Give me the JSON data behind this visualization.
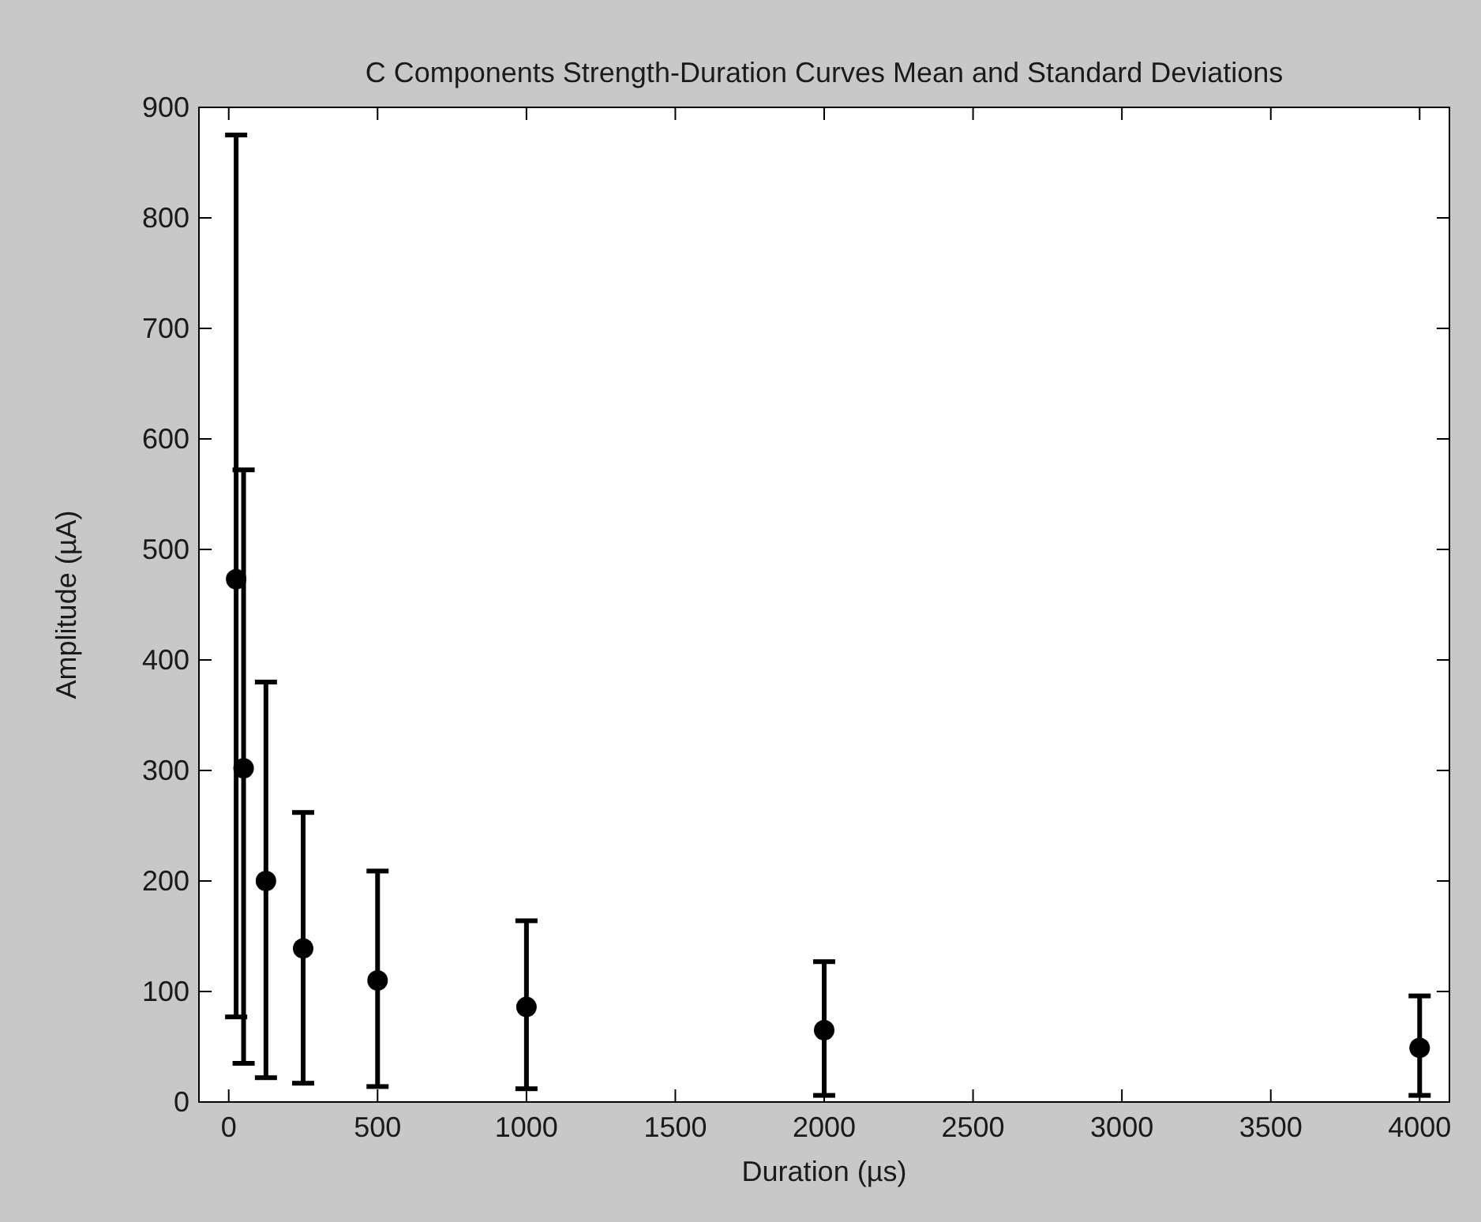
{
  "chart_data": {
    "type": "scatter",
    "title": "C Components Strength-Duration Curves Mean and Standard Deviations",
    "xlabel": "Duration (µs)",
    "ylabel": "Amplitude (µA)",
    "x": [
      25,
      50,
      125,
      250,
      500,
      1000,
      2000,
      4000
    ],
    "series": [
      {
        "color": "#000000",
        "values": [
          473,
          302,
          200,
          139,
          110,
          86,
          65,
          49
        ],
        "errors": [
          [
            77,
            875
          ],
          [
            35,
            572
          ],
          [
            22,
            380
          ],
          [
            17,
            262
          ],
          [
            14,
            209
          ],
          [
            12,
            164
          ],
          [
            6,
            127
          ],
          [
            6,
            96
          ]
        ]
      }
    ],
    "marker": "circle",
    "xlim": [
      -100,
      4100
    ],
    "ylim": [
      0,
      900
    ],
    "xticks": [
      0,
      500,
      1000,
      1500,
      2000,
      2500,
      3000,
      3500,
      4000
    ],
    "yticks": [
      0,
      100,
      200,
      300,
      400,
      500,
      600,
      700,
      800,
      900
    ],
    "grid": false
  }
}
